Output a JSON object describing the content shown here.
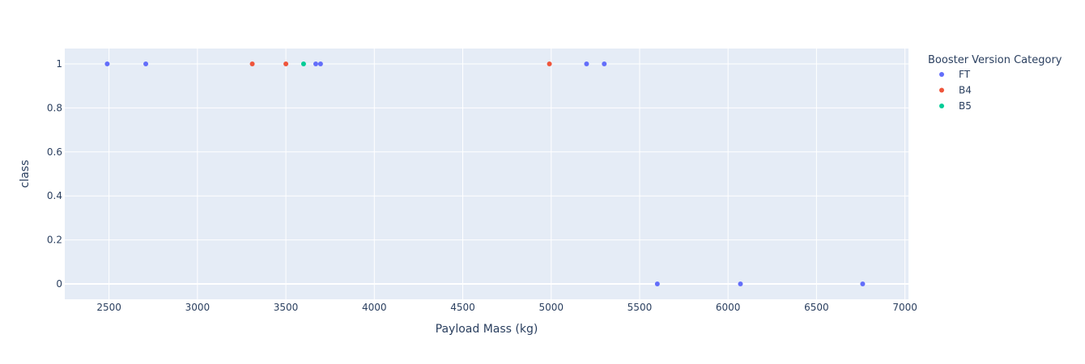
{
  "chart_data": {
    "type": "scatter",
    "xlabel": "Payload Mass (kg)",
    "ylabel": "class",
    "xlim": [
      2250,
      7020
    ],
    "ylim": [
      -0.07,
      1.07
    ],
    "xticks": [
      2500,
      3000,
      3500,
      4000,
      4500,
      5000,
      5500,
      6000,
      6500,
      7000
    ],
    "yticks": [
      0,
      0.2,
      0.4,
      0.6,
      0.8,
      1
    ],
    "ytick_labels": [
      "0",
      "0.2",
      "0.4",
      "0.6",
      "0.8",
      "1"
    ],
    "grid": true,
    "legend": {
      "title": "Booster Version Category",
      "position": "right"
    },
    "series": [
      {
        "name": "FT",
        "color": "#636efa",
        "points": [
          [
            2490,
            1
          ],
          [
            2708,
            1
          ],
          [
            3669,
            1
          ],
          [
            3696,
            1
          ],
          [
            5200,
            1
          ],
          [
            5300,
            1
          ],
          [
            5600,
            0
          ],
          [
            6070,
            0
          ],
          [
            6761,
            0
          ]
        ]
      },
      {
        "name": "B4",
        "color": "#ef553b",
        "points": [
          [
            3310,
            1
          ],
          [
            3500,
            1
          ],
          [
            4990,
            1
          ]
        ]
      },
      {
        "name": "B5",
        "color": "#00cc96",
        "points": [
          [
            3600,
            1
          ]
        ]
      }
    ]
  }
}
